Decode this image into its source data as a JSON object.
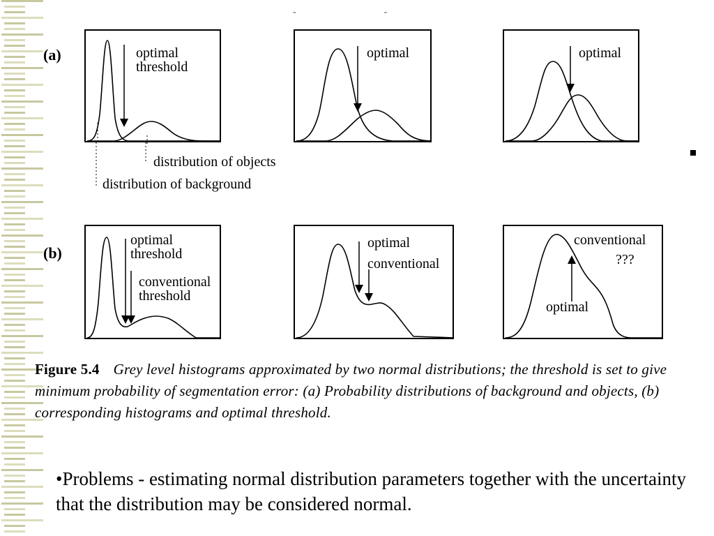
{
  "colors": {
    "stripe": "#dcdcbc",
    "stripe_dark": "#c8c8a0",
    "ink": "#000000"
  },
  "row_a": {
    "label": "(a)",
    "panel1": {
      "annotation": "optimal\nthreshold",
      "objects_label": "distribution of objects",
      "background_label": "distribution of background"
    },
    "panel2": {
      "annotation": "optimal"
    },
    "panel3": {
      "annotation": "optimal"
    }
  },
  "row_b": {
    "label": "(b)",
    "panel1": {
      "optimal": "optimal\nthreshold",
      "conventional": "conventional\nthreshold"
    },
    "panel2": {
      "optimal": "optimal",
      "conventional": "conventional"
    },
    "panel3": {
      "conventional": "conventional",
      "question": "???",
      "optimal": "optimal"
    }
  },
  "caption": {
    "figure_number": "Figure 5.4",
    "text": "Grey level histograms approximated by two normal distributions; the threshold is set to give minimum probability of segmentation error: (a) Probability distributions of background and objects, (b) corresponding histograms and optimal threshold."
  },
  "bullet": "•Problems - estimating normal distribution parameters together with the uncertainty that the distribution may be considered normal."
}
